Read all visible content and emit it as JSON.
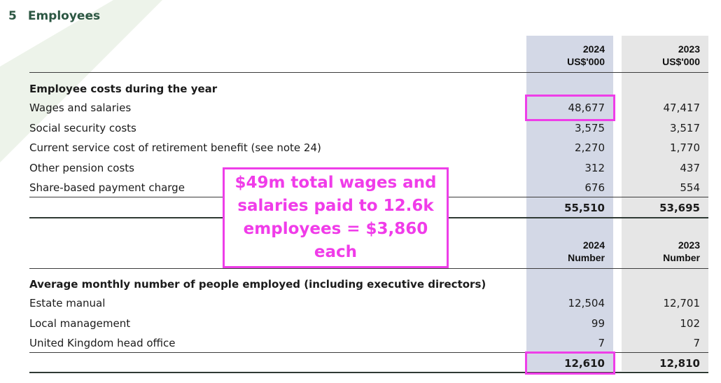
{
  "note": {
    "number": "5",
    "title": "Employees"
  },
  "costs_table": {
    "columns": [
      {
        "year": "2024",
        "unit": "US$'000"
      },
      {
        "year": "2023",
        "unit": "US$'000"
      }
    ],
    "section_title": "Employee costs during the year",
    "rows": [
      {
        "label": "Wages and salaries",
        "v2024": "48,677",
        "v2023": "47,417"
      },
      {
        "label": "Social security costs",
        "v2024": "3,575",
        "v2023": "3,517"
      },
      {
        "label": "Current service cost of retirement benefit (see note 24)",
        "v2024": "2,270",
        "v2023": "1,770"
      },
      {
        "label": "Other pension costs",
        "v2024": "312",
        "v2023": "437"
      },
      {
        "label": "Share-based payment charge",
        "v2024": "676",
        "v2023": "554"
      }
    ],
    "total": {
      "v2024": "55,510",
      "v2023": "53,695"
    }
  },
  "headcount_table": {
    "columns": [
      {
        "year": "2024",
        "unit": "Number"
      },
      {
        "year": "2023",
        "unit": "Number"
      }
    ],
    "section_title": "Average monthly number of people employed (including executive directors)",
    "rows": [
      {
        "label": "Estate manual",
        "v2024": "12,504",
        "v2023": "12,701"
      },
      {
        "label": "Local management",
        "v2024": "99",
        "v2023": "102"
      },
      {
        "label": "United Kingdom head office",
        "v2024": "7",
        "v2023": "7"
      }
    ],
    "total": {
      "v2024": "12,610",
      "v2023": "12,810"
    }
  },
  "annotation": {
    "text": "$49m total wages and salaries paid to 12.6k employees = $3,860 each",
    "color": "#ee3ee8"
  }
}
